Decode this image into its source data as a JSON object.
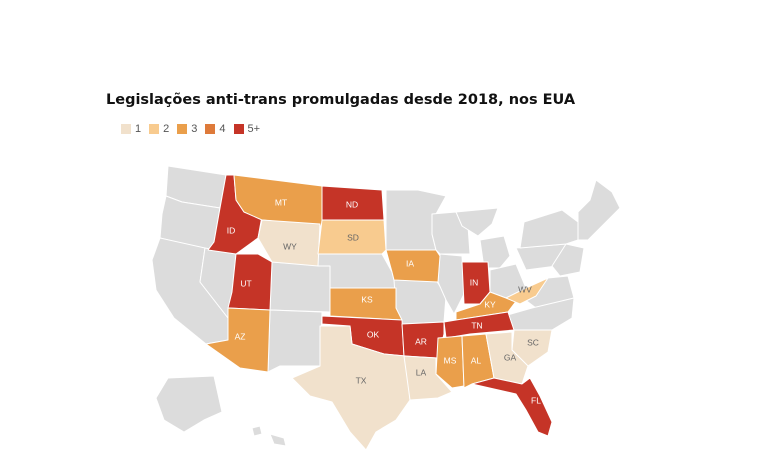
{
  "title": "Legislações anti-trans promulgadas desde 2018, nos EUA",
  "legend": [
    {
      "label": "1",
      "color": "#f1e1cc"
    },
    {
      "label": "2",
      "color": "#f8cb8f"
    },
    {
      "label": "3",
      "color": "#ea9f4b"
    },
    {
      "label": "4",
      "color": "#de7a3a"
    },
    {
      "label": "5+",
      "color": "#c53427"
    }
  ],
  "colors": {
    "other_states": "#dcdcdc",
    "border": "#ffffff",
    "label_dark": "#ffffff",
    "label_light": "#666666"
  },
  "states": [
    {
      "abbr": "ID",
      "label": "ID",
      "level": "5+"
    },
    {
      "abbr": "MT",
      "label": "MT",
      "level": "3"
    },
    {
      "abbr": "ND",
      "label": "ND",
      "level": "5+"
    },
    {
      "abbr": "WY",
      "label": "WY",
      "level": "1"
    },
    {
      "abbr": "SD",
      "label": "SD",
      "level": "2"
    },
    {
      "abbr": "IA",
      "label": "IA",
      "level": "3"
    },
    {
      "abbr": "UT",
      "label": "UT",
      "level": "5+"
    },
    {
      "abbr": "KS",
      "label": "KS",
      "level": "3"
    },
    {
      "abbr": "IN",
      "label": "IN",
      "level": "5+"
    },
    {
      "abbr": "KY",
      "label": "KY",
      "level": "3"
    },
    {
      "abbr": "WV",
      "label": "WV",
      "level": "2"
    },
    {
      "abbr": "AZ",
      "label": "AZ",
      "level": "3"
    },
    {
      "abbr": "OK",
      "label": "OK",
      "level": "5+"
    },
    {
      "abbr": "AR",
      "label": "AR",
      "level": "5+"
    },
    {
      "abbr": "TN",
      "label": "TN",
      "level": "5+"
    },
    {
      "abbr": "SC",
      "label": "SC",
      "level": "1"
    },
    {
      "abbr": "TX",
      "label": "TX",
      "level": "1"
    },
    {
      "abbr": "LA",
      "label": "LA",
      "level": "1"
    },
    {
      "abbr": "MS",
      "label": "MS",
      "level": "3"
    },
    {
      "abbr": "AL",
      "label": "AL",
      "level": "3"
    },
    {
      "abbr": "GA",
      "label": "GA",
      "level": "1"
    },
    {
      "abbr": "FL",
      "label": "FL",
      "level": "5+"
    }
  ]
}
